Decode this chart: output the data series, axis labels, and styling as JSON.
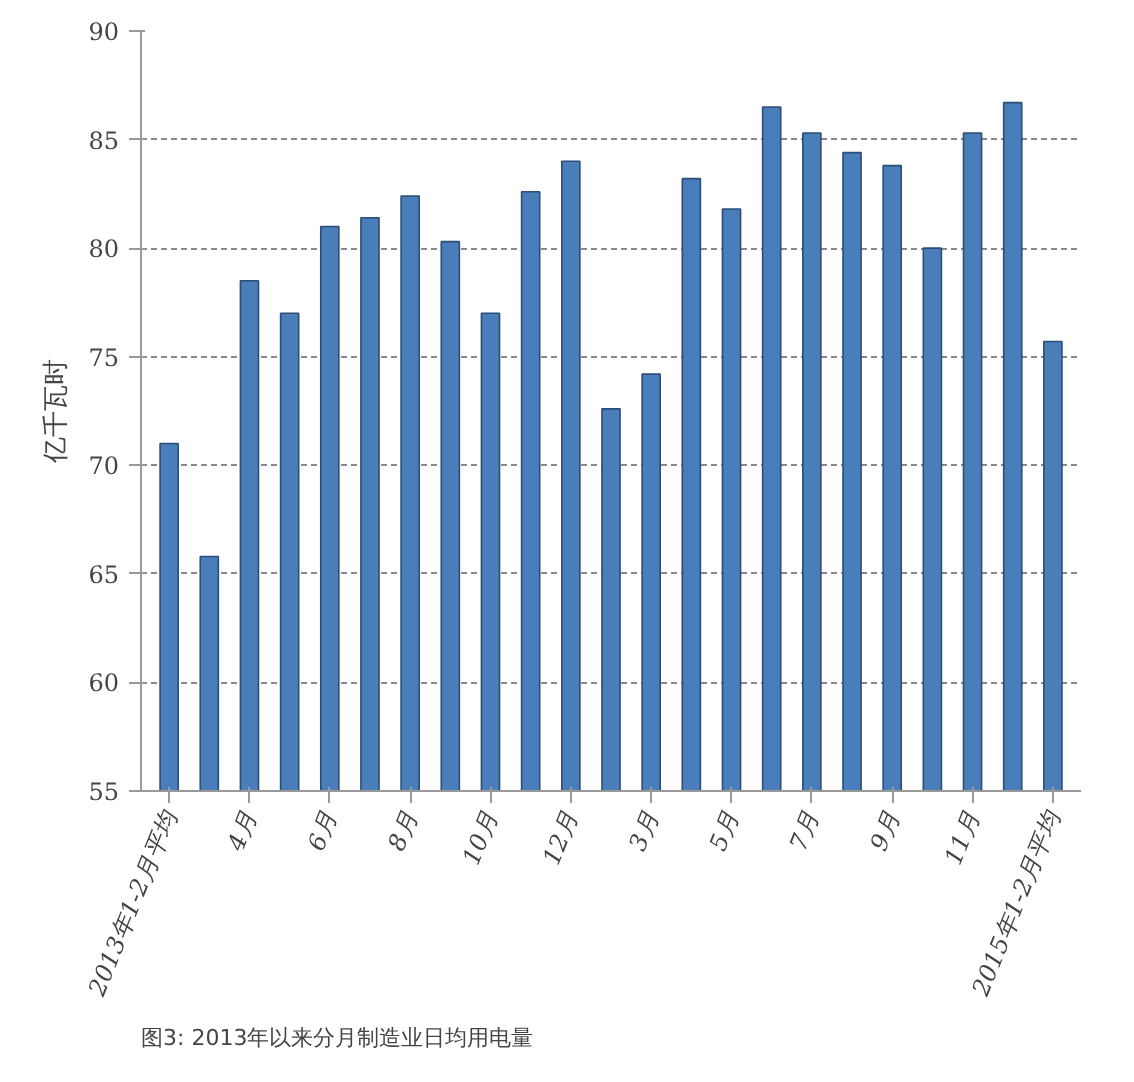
{
  "chart_data": {
    "type": "bar",
    "ylabel": "亿千瓦时",
    "categories": [
      "2013年1-2月平均",
      null,
      "4月",
      null,
      "6月",
      null,
      "8月",
      null,
      "10月",
      null,
      "12月",
      null,
      "3月",
      null,
      "5月",
      null,
      "7月",
      null,
      "9月",
      null,
      "11月",
      null,
      "2015年1-2月平均"
    ],
    "values": [
      71,
      65.8,
      78.5,
      77,
      81,
      81.4,
      82.4,
      80.3,
      77,
      82.6,
      84,
      72.6,
      74.2,
      83.2,
      81.8,
      86.5,
      85.3,
      84.4,
      83.8,
      80,
      85.3,
      86.7,
      75.7
    ],
    "color": "#4a7ebb",
    "ylim": [
      55,
      90
    ],
    "yticks": [
      55,
      60,
      65,
      70,
      75,
      80,
      85,
      90
    ],
    "grid": "y",
    "annotations": [
      "图3: 2013年以来分月制造业日均用电量"
    ]
  }
}
